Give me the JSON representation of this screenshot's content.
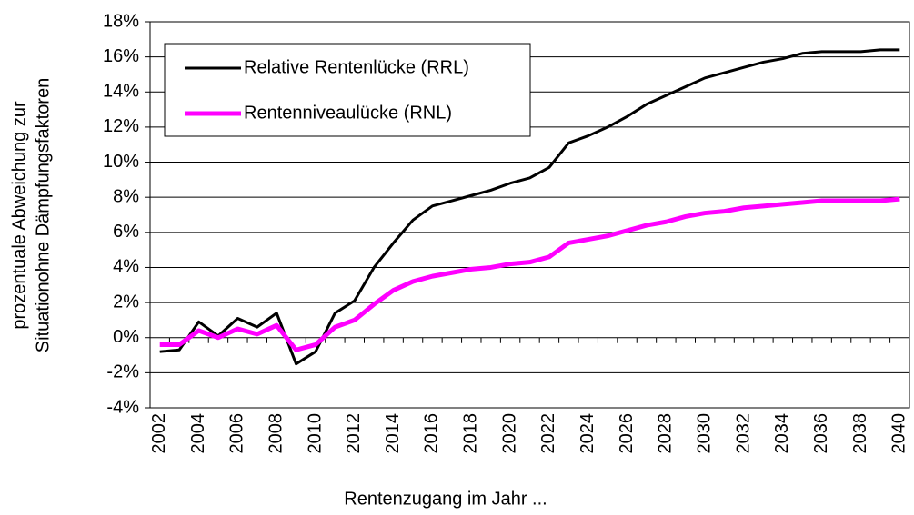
{
  "chart_data": {
    "type": "line",
    "x_label": "Rentenzugang im Jahr ...",
    "y_label": [
      "prozentuale Abweichung zur",
      "Situationohne Dämpfungsfaktoren"
    ],
    "categories": [
      "2002",
      null,
      "2004",
      null,
      "2006",
      null,
      "2008",
      null,
      "2010",
      null,
      "2012",
      null,
      "2014",
      null,
      "2016",
      null,
      "2018",
      null,
      "2020",
      null,
      "2022",
      null,
      "2024",
      null,
      "2026",
      null,
      "2028",
      null,
      "2030",
      null,
      "2032",
      null,
      "2034",
      null,
      "2036",
      null,
      "2038",
      null,
      "2040"
    ],
    "series": [
      {
        "name": "Relative Rentenlücke (RRL)",
        "color": "#000000",
        "values": [
          -0.8,
          -0.7,
          0.9,
          0.1,
          1.1,
          0.6,
          1.4,
          -1.5,
          -0.8,
          1.4,
          2.1,
          4.0,
          5.4,
          6.7,
          7.5,
          7.8,
          8.1,
          8.4,
          8.8,
          9.1,
          9.7,
          11.1,
          11.5,
          12.0,
          12.6,
          13.3,
          13.8,
          14.3,
          14.8,
          15.1,
          15.4,
          15.7,
          15.9,
          16.2,
          16.3,
          16.3,
          16.3,
          16.4,
          16.4
        ]
      },
      {
        "name": "Rentenniveaulücke (RNL)",
        "color": "#ff00ff",
        "values": [
          -0.4,
          -0.4,
          0.4,
          0.0,
          0.5,
          0.2,
          0.7,
          -0.7,
          -0.4,
          0.6,
          1.0,
          1.9,
          2.7,
          3.2,
          3.5,
          3.7,
          3.9,
          4.0,
          4.2,
          4.3,
          4.6,
          5.4,
          5.6,
          5.8,
          6.1,
          6.4,
          6.6,
          6.9,
          7.1,
          7.2,
          7.4,
          7.5,
          7.6,
          7.7,
          7.8,
          7.8,
          7.8,
          7.8,
          7.9
        ]
      }
    ],
    "ylim": [
      -4,
      18
    ],
    "yticks": [
      {
        "value": -4,
        "label": "-4%"
      },
      {
        "value": -2,
        "label": "-2%"
      },
      {
        "value": 0,
        "label": "0%"
      },
      {
        "value": 2,
        "label": "2%"
      },
      {
        "value": 4,
        "label": "4%"
      },
      {
        "value": 6,
        "label": "6%"
      },
      {
        "value": 8,
        "label": "8%"
      },
      {
        "value": 10,
        "label": "10%"
      },
      {
        "value": 12,
        "label": "12%"
      },
      {
        "value": 14,
        "label": "14%"
      },
      {
        "value": 16,
        "label": "16%"
      },
      {
        "value": 18,
        "label": "18%"
      }
    ],
    "grid": true,
    "legend": "upper left"
  }
}
